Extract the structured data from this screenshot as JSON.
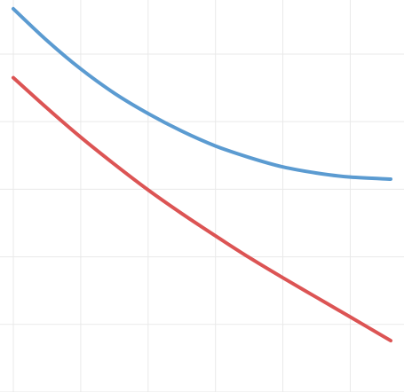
{
  "chart_data": {
    "type": "line",
    "xlim": [
      0,
      5.6
    ],
    "ylim": [
      0,
      5.8
    ],
    "grid": true,
    "grid_x": [
      0,
      1,
      2,
      3,
      4,
      5
    ],
    "grid_y": [
      0,
      1,
      2,
      3,
      4,
      5
    ],
    "series": [
      {
        "color": "#5b9bd1",
        "x": [
          0,
          0.5,
          1,
          1.5,
          2,
          2.5,
          3,
          3.5,
          4,
          4.5,
          5,
          5.6
        ],
        "y": [
          5.67,
          5.2,
          4.78,
          4.42,
          4.12,
          3.86,
          3.64,
          3.47,
          3.33,
          3.24,
          3.18,
          3.15
        ]
      },
      {
        "color": "#dc5454",
        "x": [
          0,
          0.5,
          1,
          1.5,
          2,
          2.5,
          3,
          3.5,
          4,
          4.5,
          5,
          5.6
        ],
        "y": [
          4.65,
          4.2,
          3.77,
          3.37,
          2.99,
          2.64,
          2.31,
          1.99,
          1.69,
          1.4,
          1.11,
          0.76
        ]
      }
    ]
  }
}
